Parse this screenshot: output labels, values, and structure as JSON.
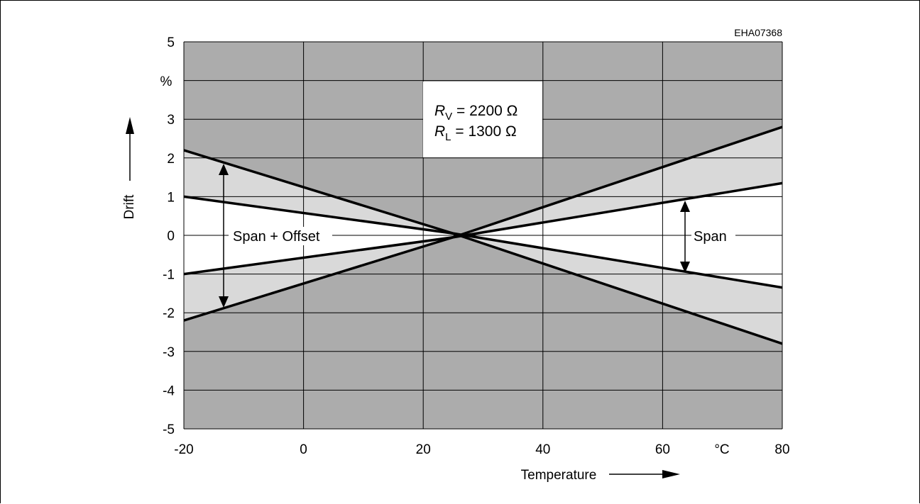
{
  "chart_data": {
    "type": "line",
    "figure_code": "EHA07368",
    "annotation": {
      "line1_symbol": "R",
      "line1_sub": "V",
      "line1_value": " = 2200 Ω",
      "line2_symbol": "R",
      "line2_sub": "L",
      "line2_value": " = 1300 Ω"
    },
    "xlabel": "Temperature",
    "ylabel": "Drift",
    "x_unit": "°C",
    "y_unit": "%",
    "xlim": [
      -20,
      80
    ],
    "ylim": [
      -5,
      5
    ],
    "x_ticks": [
      "-20",
      "0",
      "20",
      "40",
      "60",
      "80"
    ],
    "y_ticks": [
      "5",
      "3",
      "2",
      "1",
      "0",
      "-1",
      "-2",
      "-3",
      "-4",
      "-5"
    ],
    "grid": true,
    "series": [
      {
        "x": [
          -20,
          25,
          80
        ],
        "y": [
          2.2,
          0.05,
          -2.8
        ]
      },
      {
        "x": [
          -20,
          25,
          80
        ],
        "y": [
          1.0,
          0.05,
          -1.35
        ]
      },
      {
        "x": [
          -20,
          25,
          80
        ],
        "y": [
          -1.0,
          -0.05,
          1.35
        ]
      },
      {
        "x": [
          -20,
          25,
          80
        ],
        "y": [
          -2.2,
          -0.05,
          2.8
        ]
      }
    ],
    "span_offset_label": "Span + Offset",
    "span_label": "Span",
    "colors": {
      "background": "#acacac",
      "band": "#d9d9d9",
      "gridline": "#000000",
      "line": "#000000"
    }
  }
}
